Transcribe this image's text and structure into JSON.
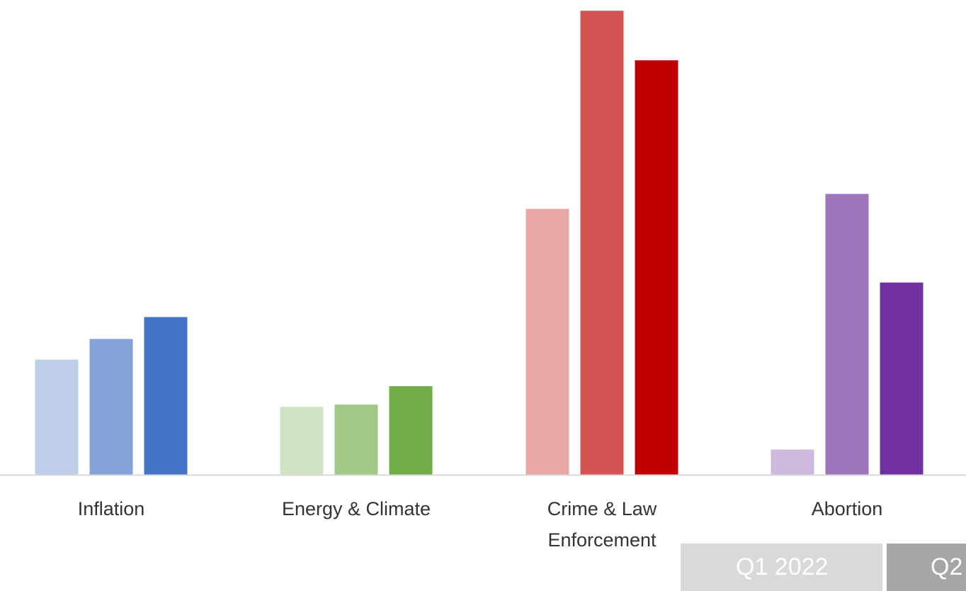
{
  "chart_data": {
    "type": "bar",
    "categories": [
      "Inflation",
      "Energy & Climate",
      "Crime & Law Enforcement",
      "Abortion"
    ],
    "category_lines": [
      [
        "Inflation"
      ],
      [
        "Energy & Climate"
      ],
      [
        "Crime & Law",
        "Enforcement"
      ],
      [
        "Abortion"
      ]
    ],
    "series": [
      {
        "name": "Q1 2022",
        "values": [
          100,
          59,
          231,
          22
        ]
      },
      {
        "name": "Q2",
        "values": [
          118,
          61,
          403,
          244
        ]
      },
      {
        "name": "",
        "values": [
          137,
          77,
          360,
          167
        ]
      }
    ],
    "ylim": [
      0,
      405
    ],
    "colors": [
      [
        "#bfcfea",
        "#84a3d9",
        "#4472c4"
      ],
      [
        "#d0e4c4",
        "#a1c985",
        "#70ad47"
      ],
      [
        "#e8a8a8",
        "#d45353",
        "#c00000"
      ],
      [
        "#cfb8dd",
        "#9f75be",
        "#7030a0"
      ]
    ],
    "axis_color": "#d9d9d9",
    "legend": [
      {
        "label": "Q1 2022",
        "color": "#d9d9d9"
      },
      {
        "label": "Q2",
        "color": "#a6a6a6"
      }
    ],
    "grid": false,
    "legend_position": "bottom-right"
  }
}
